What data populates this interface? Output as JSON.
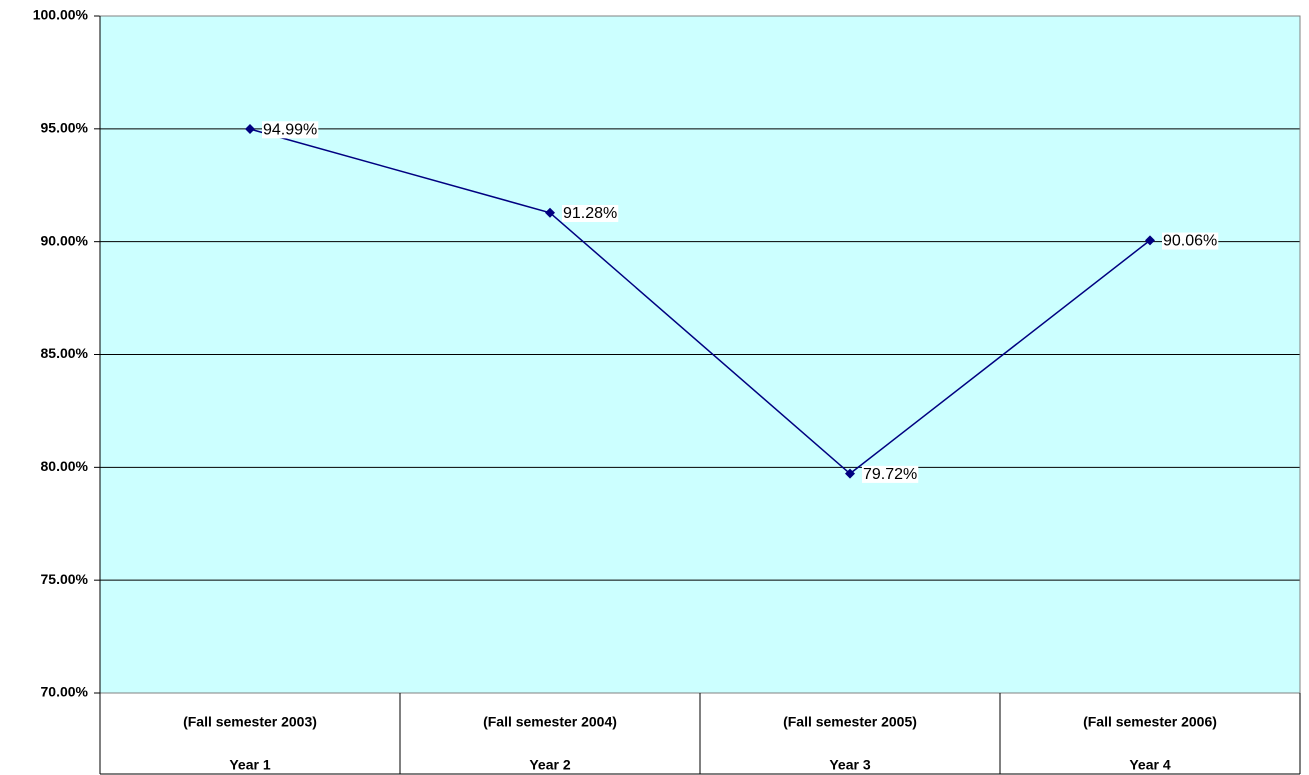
{
  "chart_data": {
    "type": "line",
    "categories": [
      [
        "(Fall semester 2003)",
        "Year 1"
      ],
      [
        "(Fall semester 2004)",
        "Year 2"
      ],
      [
        "(Fall semester 2005)",
        "Year 3"
      ],
      [
        "(Fall semester 2006)",
        "Year 4"
      ]
    ],
    "values": [
      94.99,
      91.28,
      79.72,
      90.06
    ],
    "value_labels": [
      "94.99%",
      "91.28%",
      "79.72%",
      "90.06%"
    ],
    "color": "#000080",
    "background": "#ccffff",
    "ylim": [
      70,
      100
    ],
    "yticks": [
      {
        "value": 70,
        "label": "70.00%"
      },
      {
        "value": 75,
        "label": "75.00%"
      },
      {
        "value": 80,
        "label": "80.00%"
      },
      {
        "value": 85,
        "label": "85.00%"
      },
      {
        "value": 90,
        "label": "90.00%"
      },
      {
        "value": 95,
        "label": "95.00%"
      },
      {
        "value": 100,
        "label": "100.00%"
      }
    ],
    "grid": true
  }
}
